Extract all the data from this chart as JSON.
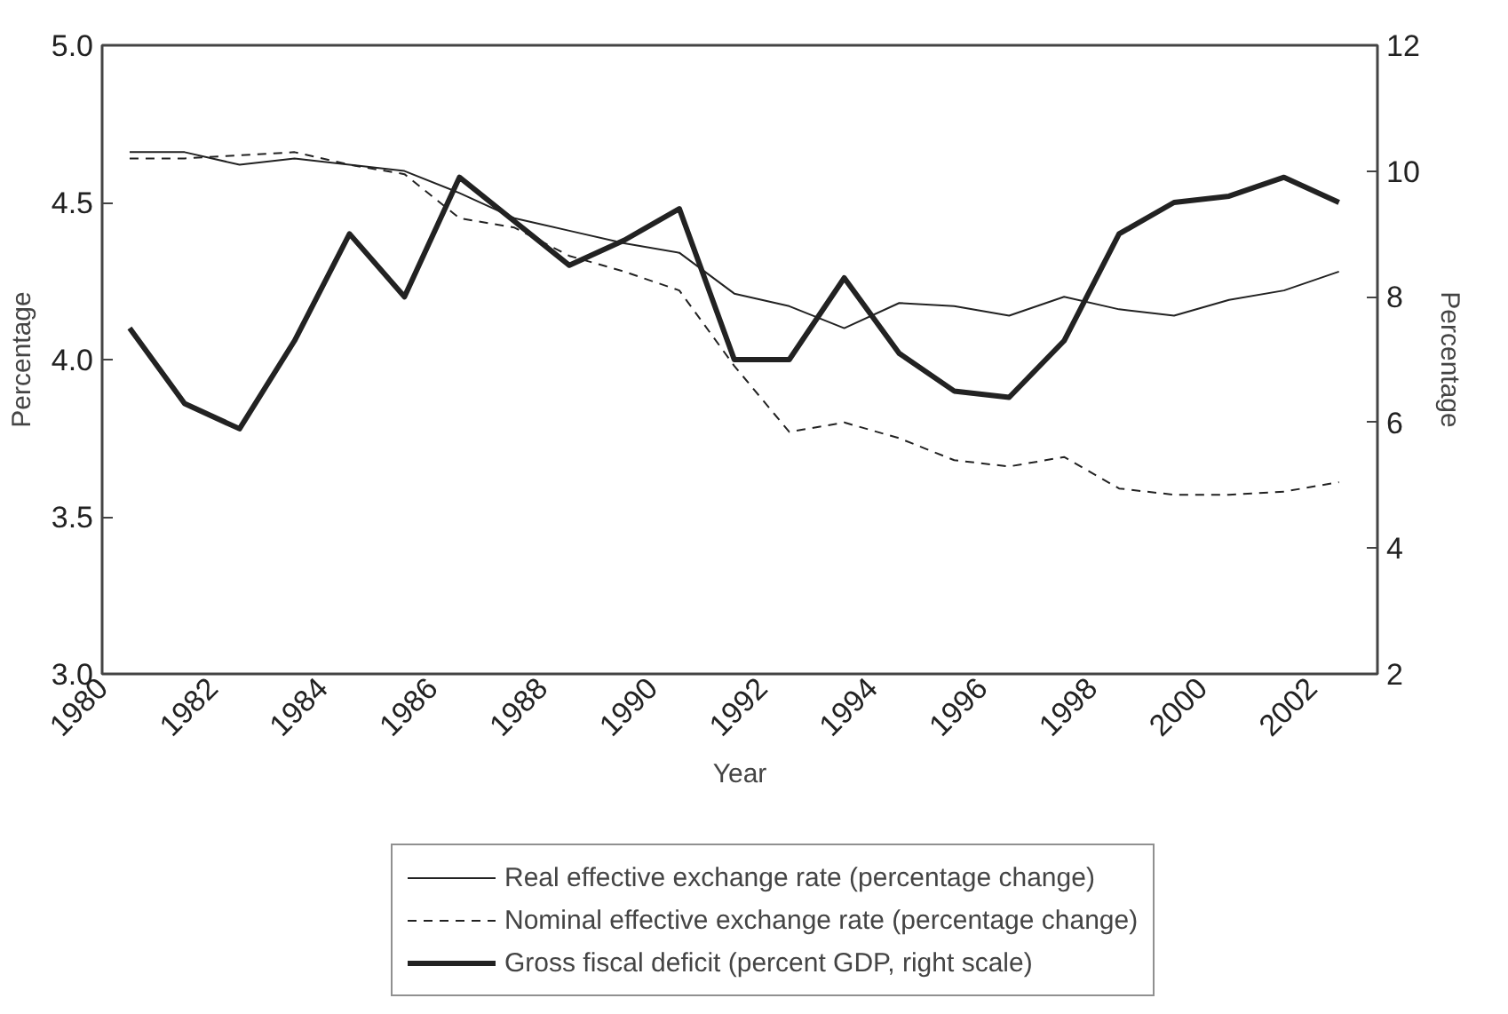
{
  "chart_data": {
    "type": "line",
    "xlabel": "Year",
    "ylabel": "Percentage",
    "y2label": "Percentage",
    "x": [
      1980.5,
      1981.5,
      1982.5,
      1983.5,
      1984.5,
      1985.5,
      1986.5,
      1987.5,
      1988.5,
      1989.5,
      1990.5,
      1991.5,
      1992.5,
      1993.5,
      1994.5,
      1995.5,
      1996.5,
      1997.5,
      1998.5,
      1999.5,
      2000.5,
      2001.5,
      2002.5
    ],
    "series": [
      {
        "name": "Real effective exchange rate (percentage change)",
        "color": "#222222",
        "line_style": "solid",
        "values": [
          4.66,
          4.66,
          4.62,
          4.64,
          4.62,
          4.6,
          4.53,
          4.45,
          4.41,
          4.37,
          4.34,
          4.21,
          4.17,
          4.1,
          4.18,
          4.17,
          4.14,
          4.2,
          4.16,
          4.14,
          4.19,
          4.22,
          4.28
        ]
      },
      {
        "name": "Nominal effective exchange rate (percentage change)",
        "color": "#222222",
        "line_style": "dashed",
        "values": [
          4.64,
          4.64,
          4.65,
          4.66,
          4.62,
          4.59,
          4.45,
          4.42,
          4.33,
          4.28,
          4.22,
          3.98,
          3.77,
          3.8,
          3.75,
          3.68,
          3.66,
          3.69,
          3.59,
          3.57,
          3.57,
          3.58,
          3.61
        ]
      },
      {
        "name": "Gross fiscal deficit (percent GDP, right scale)",
        "color": "#222222",
        "line_style": "solid",
        "axis": "y2",
        "values": [
          7.5,
          6.3,
          5.9,
          7.3,
          9.0,
          8.0,
          9.9,
          9.2,
          8.5,
          8.9,
          9.4,
          7.0,
          7.0,
          8.3,
          7.1,
          6.5,
          6.4,
          7.3,
          9.0,
          9.5,
          9.6,
          9.9,
          9.5
        ]
      }
    ],
    "xlim": [
      1980,
      2003.2
    ],
    "xticks": [
      1980,
      1982,
      1984,
      1986,
      1988,
      1990,
      1992,
      1994,
      1996,
      1998,
      2000,
      2002
    ],
    "ylim": [
      3.0,
      5.0
    ],
    "yticks": [
      {
        "value": 3.0,
        "label": "3.0"
      },
      {
        "value": 3.5,
        "label": "3.5"
      },
      {
        "value": 4.0,
        "label": "4.0"
      },
      {
        "value": 4.5,
        "label": "4.5"
      },
      {
        "value": 5.0,
        "label": "5.0"
      }
    ],
    "y2lim": [
      2,
      12
    ],
    "y2ticks": [
      2,
      4,
      6,
      8,
      10,
      12
    ],
    "grid": false,
    "legend": "bottom",
    "marker": "none"
  }
}
